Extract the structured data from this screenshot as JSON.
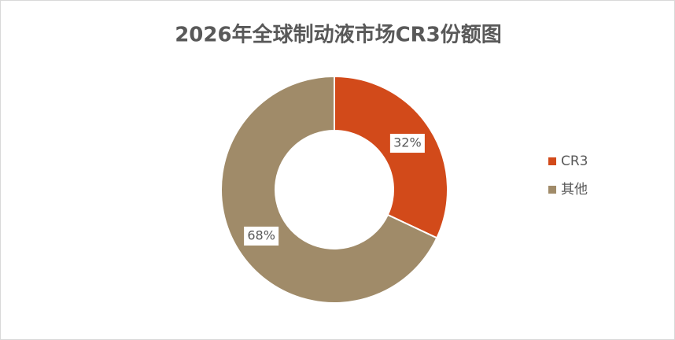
{
  "chart_data": {
    "type": "pie",
    "title": "2026年全球制动液市场CR3份额图",
    "categories": [
      "CR3",
      "其他"
    ],
    "values": [
      32,
      68
    ],
    "value_labels": [
      "32%",
      "68%"
    ],
    "colors": [
      "#d24a1a",
      "#a08b69"
    ],
    "legend": "right"
  }
}
